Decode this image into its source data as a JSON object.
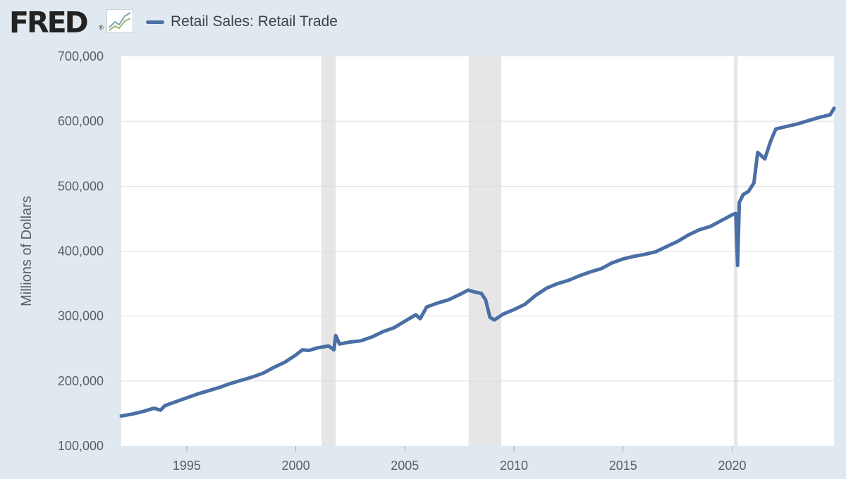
{
  "header": {
    "logo_text": "FRED",
    "logo_mark": "®",
    "logo_icon": "line-graph-icon"
  },
  "colors": {
    "background": "#e1e9f0",
    "plot_area": "#ffffff",
    "series_line": "#4a6fa5",
    "recession_band": "#e6e6e6",
    "gridline": "#dddddd",
    "tick_text": "#5a5f66"
  },
  "chart_data": {
    "type": "line",
    "title": "",
    "legend": "top-left",
    "ylabel": "Millions of Dollars",
    "xlabel": "",
    "ylim": [
      100000,
      700000
    ],
    "xlim": [
      1992.0,
      2024.67
    ],
    "grid": "horizontal",
    "yticks": [
      {
        "value": 100000,
        "label": "100,000"
      },
      {
        "value": 200000,
        "label": "200,000"
      },
      {
        "value": 300000,
        "label": "300,000"
      },
      {
        "value": 400000,
        "label": "400,000"
      },
      {
        "value": 500000,
        "label": "500,000"
      },
      {
        "value": 600000,
        "label": "600,000"
      },
      {
        "value": 700000,
        "label": "700,000"
      }
    ],
    "xticks": [
      {
        "value": 1995,
        "label": "1995"
      },
      {
        "value": 2000,
        "label": "2000"
      },
      {
        "value": 2005,
        "label": "2005"
      },
      {
        "value": 2010,
        "label": "2010"
      },
      {
        "value": 2015,
        "label": "2015"
      },
      {
        "value": 2020,
        "label": "2020"
      }
    ],
    "recessions": [
      {
        "start": 2001.17,
        "end": 2001.83
      },
      {
        "start": 2007.92,
        "end": 2009.42
      },
      {
        "start": 2020.08,
        "end": 2020.25
      }
    ],
    "series": [
      {
        "name": "Retail Sales: Retail Trade",
        "x": [
          1992.0,
          1992.5,
          1993.0,
          1993.5,
          1993.8,
          1994.0,
          1994.5,
          1995.0,
          1995.5,
          1996.0,
          1996.5,
          1997.0,
          1997.5,
          1998.0,
          1998.5,
          1999.0,
          1999.5,
          2000.0,
          2000.3,
          2000.6,
          2001.0,
          2001.5,
          2001.75,
          2001.83,
          2002.0,
          2002.5,
          2003.0,
          2003.5,
          2004.0,
          2004.5,
          2005.0,
          2005.5,
          2005.7,
          2006.0,
          2006.5,
          2007.0,
          2007.5,
          2007.9,
          2008.2,
          2008.5,
          2008.7,
          2008.9,
          2009.1,
          2009.5,
          2010.0,
          2010.5,
          2011.0,
          2011.5,
          2012.0,
          2012.5,
          2013.0,
          2013.5,
          2014.0,
          2014.5,
          2015.0,
          2015.5,
          2016.0,
          2016.5,
          2017.0,
          2017.5,
          2018.0,
          2018.5,
          2019.0,
          2019.5,
          2020.0,
          2020.17,
          2020.25,
          2020.33,
          2020.5,
          2020.75,
          2021.0,
          2021.17,
          2021.5,
          2021.75,
          2022.0,
          2022.5,
          2023.0,
          2023.5,
          2024.0,
          2024.5,
          2024.67
        ],
        "values": [
          146000,
          149000,
          153000,
          158000,
          155000,
          162000,
          168000,
          174000,
          180000,
          185000,
          190000,
          196000,
          201000,
          206000,
          212000,
          221000,
          229000,
          240000,
          248000,
          247000,
          251000,
          254000,
          248000,
          270000,
          257000,
          260000,
          262000,
          268000,
          276000,
          282000,
          292000,
          302000,
          296000,
          314000,
          320000,
          325000,
          333000,
          340000,
          337000,
          335000,
          325000,
          298000,
          294000,
          303000,
          310000,
          318000,
          332000,
          343000,
          350000,
          355000,
          362000,
          368000,
          373000,
          382000,
          388000,
          392000,
          395000,
          399000,
          407000,
          415000,
          425000,
          433000,
          438000,
          447000,
          456000,
          458000,
          378000,
          475000,
          487000,
          492000,
          505000,
          552000,
          542000,
          568000,
          588000,
          592000,
          596000,
          601000,
          606000,
          610000,
          620000
        ]
      }
    ]
  }
}
